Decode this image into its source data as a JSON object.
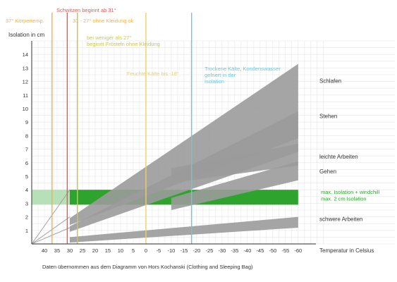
{
  "chart_data": {
    "type": "area",
    "xlabel": "Temperatur in Celsius",
    "ylabel": "Isolation in cm",
    "x_axis_reversed": true,
    "xlim": [
      45,
      -67
    ],
    "ylim": [
      0,
      15
    ],
    "grid": true,
    "x_ticks": [
      40,
      35,
      30,
      25,
      20,
      15,
      10,
      5,
      0,
      -5,
      -10,
      -15,
      -20,
      -25,
      -30,
      -35,
      -40,
      -45,
      -50,
      -55,
      -60
    ],
    "x_tick_labels": [
      "40",
      "35",
      "30",
      "25",
      "20",
      "15",
      "10",
      "5",
      "0",
      "-5",
      "-10",
      "-15",
      "-20",
      "-25",
      "-30",
      "-35",
      "-40",
      "-45",
      "-50",
      "-55",
      "-60"
    ],
    "y_ticks": [
      1,
      2,
      3,
      4,
      5,
      6,
      7,
      8,
      9,
      10,
      11,
      12,
      13,
      14
    ],
    "y_tick_labels": [
      "1",
      "2",
      "3",
      "4",
      "5",
      "6",
      "7",
      "8",
      "9",
      "10",
      "11",
      "12",
      "13",
      "14"
    ],
    "series": [
      {
        "name": "Schlafen",
        "color": "#9b9b9b",
        "x": [
          30,
          -60
        ],
        "lower": [
          1.4,
          7.8
        ],
        "upper": [
          1.9,
          13.3
        ]
      },
      {
        "name": "Stehen",
        "color": "#9b9b9b",
        "x": [
          30,
          -60
        ],
        "lower": [
          0.9,
          6.8
        ],
        "upper": [
          1.3,
          9.8
        ]
      },
      {
        "name": "leichte Arbeiten",
        "color": "#9b9b9b",
        "x": [
          -10,
          -60
        ],
        "lower": [
          4.5,
          5.8
        ],
        "upper": [
          5.6,
          7.4
        ]
      },
      {
        "name": "Gehen",
        "color": "#9b9b9b",
        "x": [
          -10,
          -60
        ],
        "lower": [
          2.5,
          4.7
        ],
        "upper": [
          3.4,
          6.1
        ]
      },
      {
        "name": "schwere Arbeiten",
        "color": "#9b9b9b",
        "x": [
          30,
          -60
        ],
        "lower": [
          0.1,
          1.2
        ],
        "upper": [
          0.5,
          2.0
        ]
      }
    ],
    "guide_lines": [
      {
        "x": 30,
        "y_end": 4.0,
        "color": "#9b9b9b"
      },
      {
        "x": 30,
        "y_end": 2.0,
        "color": "#9b9b9b"
      },
      {
        "x": 30,
        "y_end": 1.2,
        "color": "#9b9b9b"
      }
    ],
    "bands": [
      {
        "y_from": 2.9,
        "y_to": 4.0,
        "x_from": 45,
        "x_to": -60,
        "color": "#b8e0b8",
        "label": "max. Isolation + windchill"
      },
      {
        "y_from": 2.9,
        "y_to": 4.0,
        "x_from": 30,
        "x_to": -60,
        "color": "#2ea42e",
        "label": "max. 2 cm Isolation"
      }
    ],
    "vertical_lines": [
      {
        "x": 37,
        "color": "#f2b24a",
        "label": "37° Körpertemp."
      },
      {
        "x": 31,
        "color": "#e05a4e",
        "label": "Schwitzen beginnt ab 31°"
      },
      {
        "x": 27,
        "color": "#f2b24a",
        "label": "31 - 27° ohne Kleidung ok"
      },
      {
        "x": 27,
        "color": "#c8c850",
        "label": "bei weniger als 27° beginnt Frösteln ohne Kleidung"
      },
      {
        "x": 0,
        "color": "#e8d070",
        "label": "Feuchte Kälte bis -18°"
      },
      {
        "x": -18,
        "color": "#6fc6d8",
        "label": "Trockene Kälte, Kondenswasser gefriert in der Isolation"
      }
    ],
    "footnote": "Daten übernommen aus dem Diagramm von Hors Kochanski (Clothing and Sleeping Bag)"
  }
}
